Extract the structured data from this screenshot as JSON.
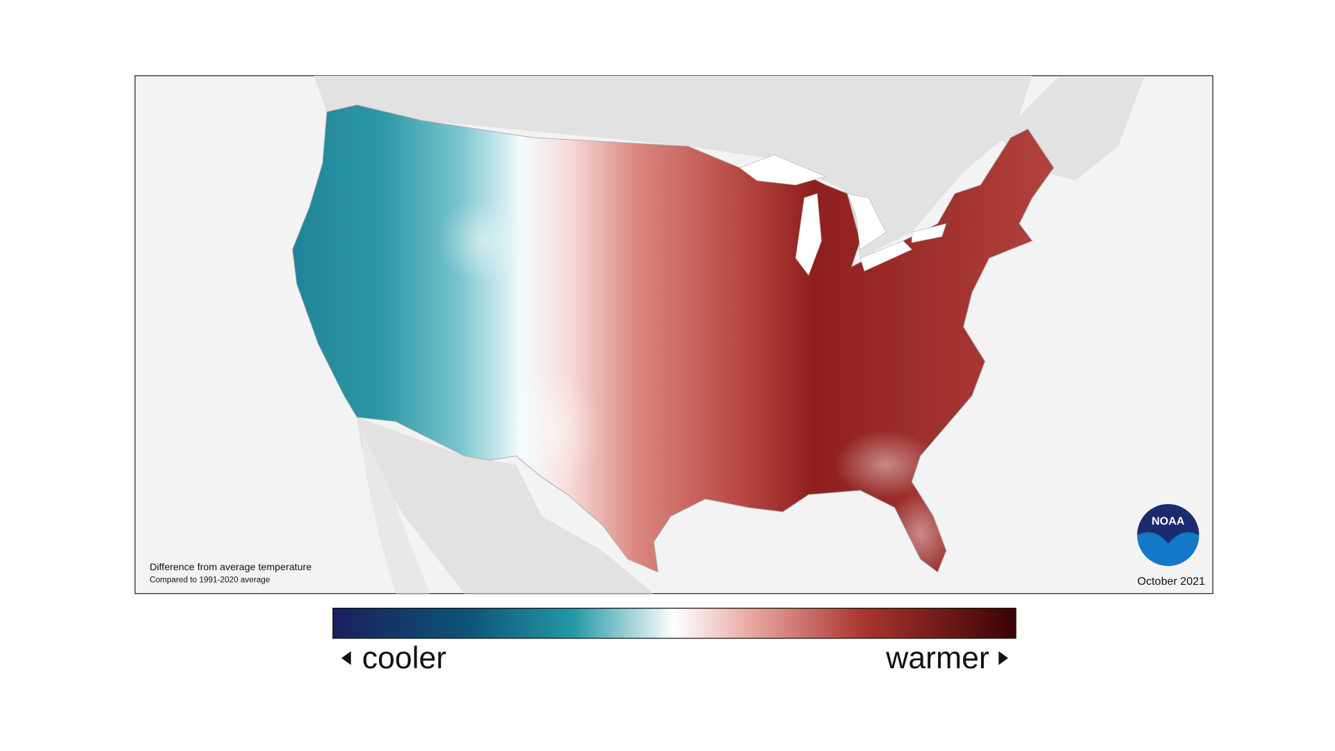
{
  "map": {
    "caption_title": "Difference from average temperature",
    "caption_subtitle": "Compared to 1991-2020 average",
    "date": "October 2021",
    "logo": "NOAA"
  },
  "legend": {
    "low_label": "cooler",
    "high_label": "warmer"
  }
}
